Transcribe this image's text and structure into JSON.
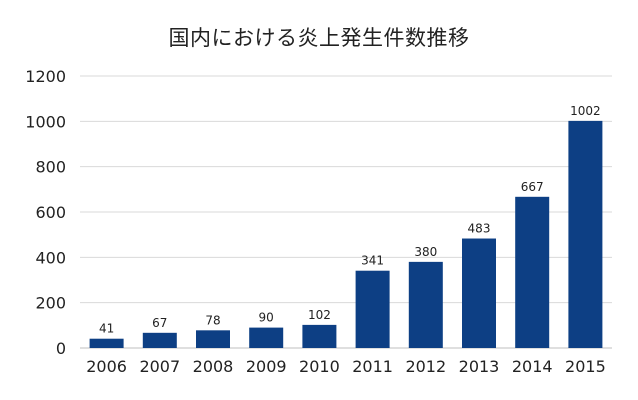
{
  "chart_data": {
    "type": "bar",
    "title": "国内における炎上発生件数推移",
    "xlabel": "",
    "ylabel": "",
    "categories": [
      "2006",
      "2007",
      "2008",
      "2009",
      "2010",
      "2011",
      "2012",
      "2013",
      "2014",
      "2015"
    ],
    "values": [
      41,
      67,
      78,
      90,
      102,
      341,
      380,
      483,
      667,
      1002
    ],
    "ylim": [
      0,
      1200
    ],
    "yticks": [
      "0",
      "200",
      "400",
      "600",
      "800",
      "1000",
      "1200"
    ],
    "data_labels": [
      "41",
      "67",
      "78",
      "90",
      "102",
      "341",
      "380",
      "483",
      "667",
      "1002"
    ],
    "grid": true,
    "legend": "none",
    "colors": {
      "bar": "#0d3f84",
      "grid": "#d9d9d9",
      "axis_text": "#222222",
      "label_text": "#222222"
    }
  }
}
